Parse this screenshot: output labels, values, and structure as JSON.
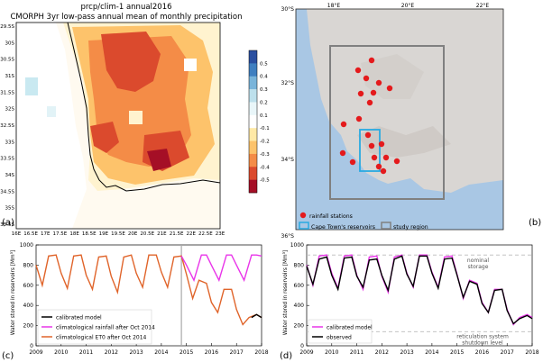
{
  "panel_a": {
    "letter": "(a)",
    "title_line1": "prcp/clim-1 annual2016",
    "title_line2": "CMORPH 3yr low-pass annual mean of monthly precipitation",
    "lat_labels": [
      "29.5S",
      "30S",
      "30.5S",
      "31S",
      "31.5S",
      "32S",
      "32.5S",
      "33S",
      "33.5S",
      "34S",
      "34.5S",
      "35S",
      "35.5S"
    ],
    "lon_labels": [
      "16E",
      "16.5E",
      "17E",
      "17.5E",
      "18E",
      "18.5E",
      "19E",
      "19.5E",
      "20E",
      "20.5E",
      "21E",
      "21.5E",
      "22E",
      "22.5E",
      "23E"
    ],
    "colorbar_ticks": [
      "0.5",
      "0.4",
      "0.3",
      "0.2",
      "0.1",
      "-0.1",
      "-0.2",
      "-0.3",
      "-0.4",
      "-0.5"
    ],
    "colorbar_colors": [
      "#2a4fa0",
      "#3f7fc0",
      "#79b4da",
      "#bde0ec",
      "#e9f6f9",
      "#ffffff",
      "#ffe9a6",
      "#fdc36b",
      "#f48c47",
      "#db4a2d",
      "#a50f26"
    ]
  },
  "panel_b": {
    "letter": "(b)",
    "lat_labels": [
      "30°S",
      "32°S",
      "34°S",
      "36°S"
    ],
    "lon_labels": [
      "18°E",
      "20°E",
      "22°E"
    ],
    "legend": [
      "rainfall stations",
      "Cape Town's reservoirs",
      "study region"
    ],
    "colors": {
      "ocean": "#a9c7e4",
      "land": "#d9d6d3",
      "station": "#e41a1c",
      "reservoir_box": "#29aae2",
      "study_box": "#808080"
    }
  },
  "panel_c": {
    "letter": "(c)",
    "legend": [
      "calibrated model",
      "climatological rainfall after Oct 2014",
      "climatological ET0 after Oct 2014"
    ],
    "colors": {
      "calibrated": "#000000",
      "rain": "#e935e9",
      "et0": "#e0642a"
    }
  },
  "panel_d": {
    "letter": "(d)",
    "legend": [
      "calibrated model",
      "observed"
    ],
    "annotations": [
      "nominal",
      "storage",
      "reticulation system",
      "shutdown level"
    ],
    "colors": {
      "calibrated": "#e935e9",
      "observed": "#000000"
    }
  },
  "chart_data": [
    {
      "type": "line",
      "panel": "c",
      "title": "",
      "xlabel": "",
      "ylabel": "Water stored in reservoirs [Mm³]",
      "x_ticks": [
        "2009",
        "2010",
        "2011",
        "2012",
        "2013",
        "2014",
        "2015",
        "2016",
        "2017",
        "2018"
      ],
      "y_ticks": [
        "0",
        "200",
        "400",
        "600",
        "800",
        "1000"
      ],
      "xlim": [
        2009,
        2018
      ],
      "ylim": [
        0,
        1000
      ],
      "vline_x": 2014.8,
      "series": [
        {
          "name": "climatological ET0 after Oct 2014",
          "x": [
            2009.0,
            2009.25,
            2009.5,
            2009.8,
            2010.0,
            2010.25,
            2010.5,
            2010.8,
            2011.0,
            2011.25,
            2011.5,
            2011.8,
            2012.0,
            2012.25,
            2012.5,
            2012.8,
            2013.0,
            2013.25,
            2013.5,
            2013.8,
            2014.0,
            2014.25,
            2014.5,
            2014.8,
            2015.0,
            2015.25,
            2015.5,
            2015.8,
            2016.0,
            2016.25,
            2016.5,
            2016.8,
            2017.0,
            2017.25,
            2017.5,
            2017.8,
            2018.0
          ],
          "y": [
            800,
            600,
            890,
            900,
            720,
            570,
            890,
            900,
            700,
            560,
            880,
            890,
            690,
            530,
            880,
            900,
            720,
            580,
            900,
            900,
            730,
            580,
            880,
            890,
            710,
            470,
            650,
            620,
            430,
            330,
            560,
            560,
            360,
            210,
            280,
            310,
            280
          ]
        },
        {
          "name": "climatological rainfall after Oct 2014",
          "x": [
            2014.8,
            2015.0,
            2015.3,
            2015.6,
            2015.8,
            2016.0,
            2016.3,
            2016.6,
            2016.8,
            2017.0,
            2017.3,
            2017.6,
            2017.8,
            2018.0
          ],
          "y": [
            890,
            800,
            650,
            900,
            900,
            800,
            650,
            900,
            900,
            800,
            650,
            900,
            900,
            890
          ]
        },
        {
          "name": "calibrated model",
          "x": [
            2017.6,
            2017.8,
            2018.0
          ],
          "y": [
            280,
            310,
            280
          ]
        }
      ]
    },
    {
      "type": "line",
      "panel": "d",
      "title": "",
      "xlabel": "",
      "ylabel": "Water stored in reservoirs [Mm³]",
      "x_ticks": [
        "2009",
        "2010",
        "2011",
        "2012",
        "2013",
        "2014",
        "2015",
        "2016",
        "2017",
        "2018"
      ],
      "y_ticks": [
        "0",
        "200",
        "400",
        "600",
        "800",
        "1000"
      ],
      "xlim": [
        2009,
        2018
      ],
      "ylim": [
        0,
        1000
      ],
      "hlines": [
        {
          "label": "nominal storage",
          "y": 900
        },
        {
          "label": "reticulation system shutdown level",
          "y": 140
        }
      ],
      "series": [
        {
          "name": "calibrated model",
          "x": [
            2009.0,
            2009.25,
            2009.5,
            2009.8,
            2010.0,
            2010.25,
            2010.5,
            2010.8,
            2011.0,
            2011.25,
            2011.5,
            2011.8,
            2012.0,
            2012.25,
            2012.5,
            2012.8,
            2013.0,
            2013.25,
            2013.5,
            2013.8,
            2014.0,
            2014.25,
            2014.5,
            2014.8,
            2015.0,
            2015.25,
            2015.5,
            2015.8,
            2016.0,
            2016.25,
            2016.5,
            2016.8,
            2017.0,
            2017.25,
            2017.5,
            2017.8,
            2018.0
          ],
          "y": [
            800,
            600,
            890,
            900,
            720,
            570,
            890,
            900,
            700,
            560,
            880,
            890,
            690,
            530,
            880,
            900,
            720,
            580,
            900,
            900,
            730,
            580,
            880,
            890,
            710,
            470,
            650,
            620,
            430,
            330,
            560,
            560,
            360,
            210,
            280,
            310,
            280
          ]
        },
        {
          "name": "observed",
          "x": [
            2009.0,
            2009.25,
            2009.5,
            2009.8,
            2010.0,
            2010.25,
            2010.5,
            2010.8,
            2011.0,
            2011.25,
            2011.5,
            2011.8,
            2012.0,
            2012.25,
            2012.5,
            2012.8,
            2013.0,
            2013.25,
            2013.5,
            2013.8,
            2014.0,
            2014.25,
            2014.5,
            2014.8,
            2015.0,
            2015.25,
            2015.5,
            2015.8,
            2016.0,
            2016.25,
            2016.5,
            2016.8,
            2017.0,
            2017.25,
            2017.5,
            2017.8,
            2018.0
          ],
          "y": [
            790,
            610,
            860,
            880,
            700,
            560,
            870,
            880,
            690,
            580,
            850,
            860,
            700,
            550,
            860,
            890,
            710,
            590,
            890,
            890,
            720,
            570,
            860,
            870,
            700,
            480,
            640,
            610,
            420,
            330,
            550,
            560,
            350,
            220,
            270,
            300,
            270
          ]
        }
      ]
    }
  ]
}
